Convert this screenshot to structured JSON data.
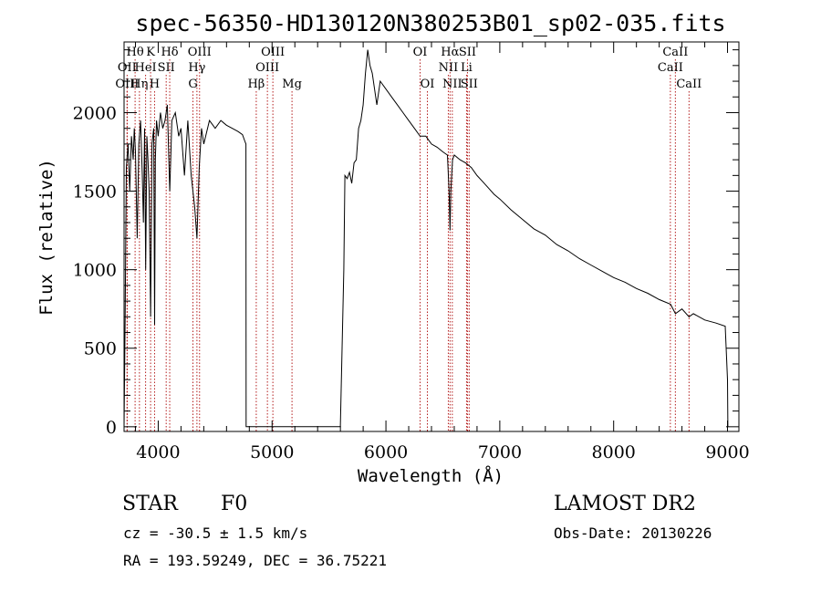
{
  "chart_data": {
    "type": "line",
    "title": "spec-56350-HD130120N380253B01_sp02-035.fits",
    "xlabel": "Wavelength (Å)",
    "ylabel": "Flux (relative)",
    "xlim": [
      3700,
      9100
    ],
    "ylim": [
      -30,
      2450
    ],
    "x_ticks": [
      4000,
      5000,
      6000,
      7000,
      8000,
      9000
    ],
    "y_ticks": [
      0,
      500,
      1000,
      1500,
      2000
    ],
    "grid": false,
    "series": [
      {
        "x": [
          3700,
          3710,
          3720,
          3735,
          3750,
          3765,
          3780,
          3790,
          3800,
          3815,
          3830,
          3845,
          3860,
          3870,
          3880,
          3890,
          3900,
          3910,
          3920,
          3933,
          3945,
          3960,
          3968,
          3975,
          3985,
          4000,
          4020,
          4040,
          4060,
          4080,
          4101,
          4120,
          4150,
          4180,
          4200,
          4230,
          4260,
          4290,
          4320,
          4340,
          4360,
          4380,
          4400,
          4450,
          4500,
          4550,
          4600,
          4650,
          4700,
          4740,
          4760,
          4770,
          4772,
          4780,
          5000,
          5300,
          5600,
          5630,
          5640,
          5660,
          5680,
          5700,
          5720,
          5740,
          5760,
          5780,
          5800,
          5820,
          5840,
          5860,
          5880,
          5900,
          5920,
          5950,
          6000,
          6050,
          6100,
          6150,
          6200,
          6250,
          6300,
          6350,
          6400,
          6450,
          6500,
          6540,
          6555,
          6563,
          6570,
          6585,
          6600,
          6650,
          6700,
          6750,
          6800,
          6850,
          6900,
          6950,
          7000,
          7100,
          7200,
          7300,
          7400,
          7500,
          7600,
          7700,
          7800,
          7900,
          8000,
          8100,
          8200,
          8300,
          8400,
          8500,
          8542,
          8600,
          8662,
          8700,
          8800,
          8900,
          8980,
          9000,
          9003
        ],
        "y": [
          0,
          700,
          1650,
          1800,
          1500,
          1850,
          1700,
          1900,
          1750,
          1200,
          1800,
          1950,
          1600,
          1300,
          1900,
          1000,
          1850,
          1700,
          1500,
          700,
          1800,
          1900,
          650,
          1700,
          1950,
          1850,
          2000,
          1900,
          1950,
          2050,
          1500,
          1950,
          2000,
          1850,
          1900,
          1600,
          1950,
          1600,
          1400,
          1200,
          1650,
          1900,
          1800,
          1950,
          1900,
          1950,
          1920,
          1900,
          1880,
          1860,
          1820,
          1800,
          0,
          0,
          0,
          0,
          0,
          1000,
          1600,
          1580,
          1620,
          1550,
          1680,
          1700,
          1900,
          1950,
          2050,
          2250,
          2400,
          2300,
          2250,
          2150,
          2050,
          2200,
          2150,
          2100,
          2050,
          2000,
          1950,
          1900,
          1850,
          1850,
          1800,
          1780,
          1750,
          1730,
          1500,
          1250,
          1500,
          1700,
          1730,
          1700,
          1680,
          1650,
          1600,
          1560,
          1520,
          1480,
          1450,
          1380,
          1320,
          1260,
          1220,
          1160,
          1120,
          1070,
          1030,
          990,
          950,
          920,
          880,
          850,
          810,
          780,
          720,
          750,
          700,
          720,
          680,
          660,
          640,
          300,
          0
        ]
      }
    ],
    "line_markers": [
      {
        "label": "Hθ",
        "wl": 3797,
        "row": 0
      },
      {
        "label": "K",
        "wl": 3933,
        "row": 0
      },
      {
        "label": "Hδ",
        "wl": 4101,
        "row": 0
      },
      {
        "label": "OIII",
        "wl": 4363,
        "row": 0
      },
      {
        "label": "OIII",
        "wl": 5007,
        "row": 0
      },
      {
        "label": "OI",
        "wl": 6300,
        "row": 0
      },
      {
        "label": "Hα",
        "wl": 6563,
        "row": 0
      },
      {
        "label": "SII",
        "wl": 6716,
        "row": 0
      },
      {
        "label": "CaII",
        "wl": 8542,
        "row": 0
      },
      {
        "label": "OII",
        "wl": 3727,
        "row": 1
      },
      {
        "label": "HeI",
        "wl": 3889,
        "row": 1
      },
      {
        "label": "SII",
        "wl": 4070,
        "row": 1
      },
      {
        "label": "Hγ",
        "wl": 4340,
        "row": 1
      },
      {
        "label": "OIII",
        "wl": 4959,
        "row": 1
      },
      {
        "label": "NII",
        "wl": 6548,
        "row": 1
      },
      {
        "label": "Li",
        "wl": 6708,
        "row": 1
      },
      {
        "label": "CaII",
        "wl": 8498,
        "row": 1
      },
      {
        "label": "OIII",
        "wl": 3727,
        "row": 2
      },
      {
        "label": "Hη",
        "wl": 3835,
        "row": 2
      },
      {
        "label": "H",
        "wl": 3968,
        "row": 2
      },
      {
        "label": "G",
        "wl": 4305,
        "row": 2
      },
      {
        "label": "Hβ",
        "wl": 4861,
        "row": 2
      },
      {
        "label": "Mg",
        "wl": 5175,
        "row": 2
      },
      {
        "label": "OI",
        "wl": 6364,
        "row": 2
      },
      {
        "label": "NII",
        "wl": 6583,
        "row": 2
      },
      {
        "label": "SII",
        "wl": 6731,
        "row": 2
      },
      {
        "label": "CaII",
        "wl": 8662,
        "row": 2
      }
    ],
    "marker_color": "#b41e1e"
  },
  "info": {
    "object_class": "STAR",
    "subclass": "F0",
    "survey": "LAMOST DR2",
    "redshift_text": "cz = -30.5 ± 1.5 km/s",
    "obs_date_text": "Obs-Date: 20130226",
    "coords_text": "RA = 193.59249, DEC =  36.75221"
  }
}
